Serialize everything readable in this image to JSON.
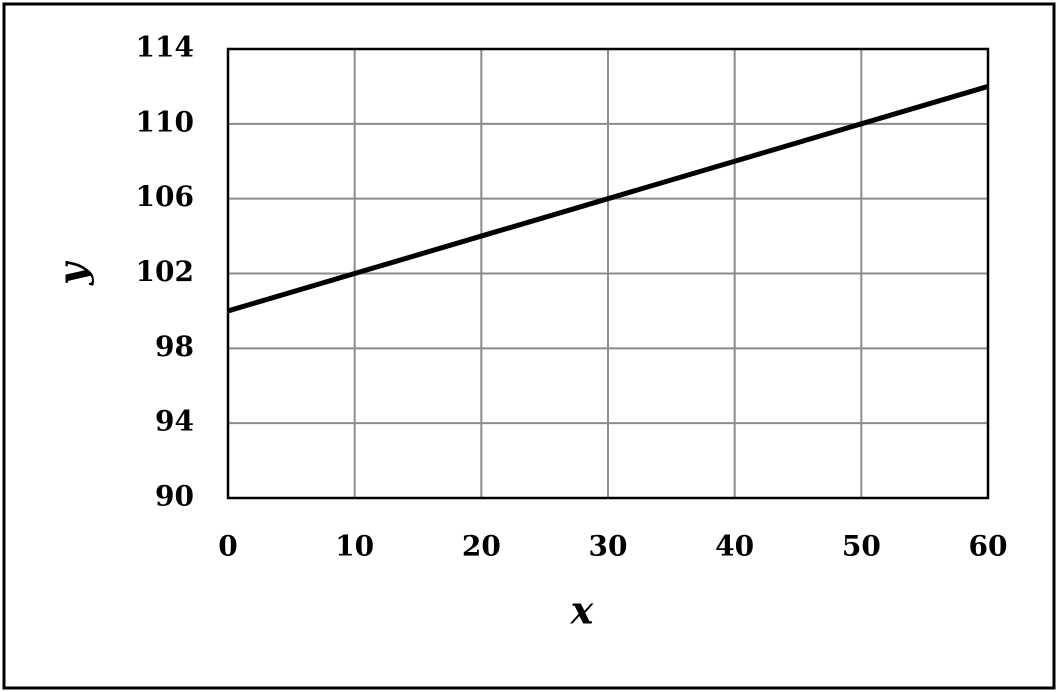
{
  "chart_data": {
    "type": "line",
    "x_label": "x",
    "y_label": "y",
    "x": [
      0,
      10,
      20,
      30,
      40,
      50,
      60
    ],
    "series": [
      {
        "color": "#000000",
        "values": [
          100,
          102,
          104,
          106,
          108,
          110,
          112
        ]
      }
    ],
    "xlim": [
      0,
      60
    ],
    "xticks": [
      0,
      10,
      20,
      30,
      40,
      50,
      60
    ],
    "ylim": [
      90,
      114
    ],
    "yticks": [
      90,
      94,
      98,
      102,
      106,
      110,
      114
    ],
    "grid": true
  }
}
